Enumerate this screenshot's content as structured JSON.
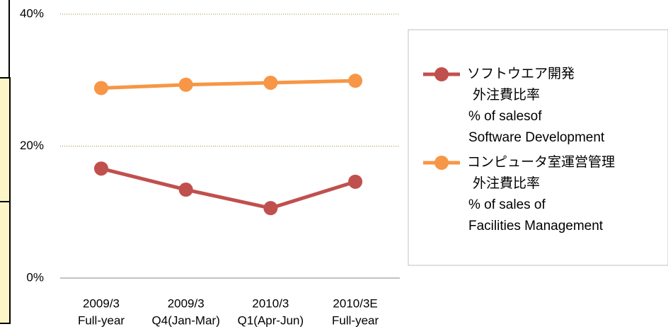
{
  "chart_data": {
    "type": "line",
    "categories": [
      [
        "2009/3",
        "Full-year"
      ],
      [
        "2009/3",
        "Q4(Jan-Mar)"
      ],
      [
        "2010/3",
        "Q1(Apr-Jun)"
      ],
      [
        "2010/3E",
        "Full-year"
      ]
    ],
    "series": [
      {
        "name": [
          "ソフトウエア開発",
          "外注費比率",
          "% of salesof",
          "Software Development"
        ],
        "color": "#c0504d",
        "values": [
          16.6,
          13.4,
          10.6,
          14.6
        ]
      },
      {
        "name": [
          "コンピュータ室運営管理",
          "外注費比率",
          "% of sales of",
          "Facilities Management"
        ],
        "color": "#f79646",
        "values": [
          28.8,
          29.3,
          29.6,
          29.9
        ]
      }
    ],
    "ylim": [
      0,
      40
    ],
    "yticks": [
      {
        "value": 0,
        "label": "0%"
      },
      {
        "value": 20,
        "label": "20%"
      },
      {
        "value": 40,
        "label": "40%"
      }
    ],
    "grid": true
  }
}
